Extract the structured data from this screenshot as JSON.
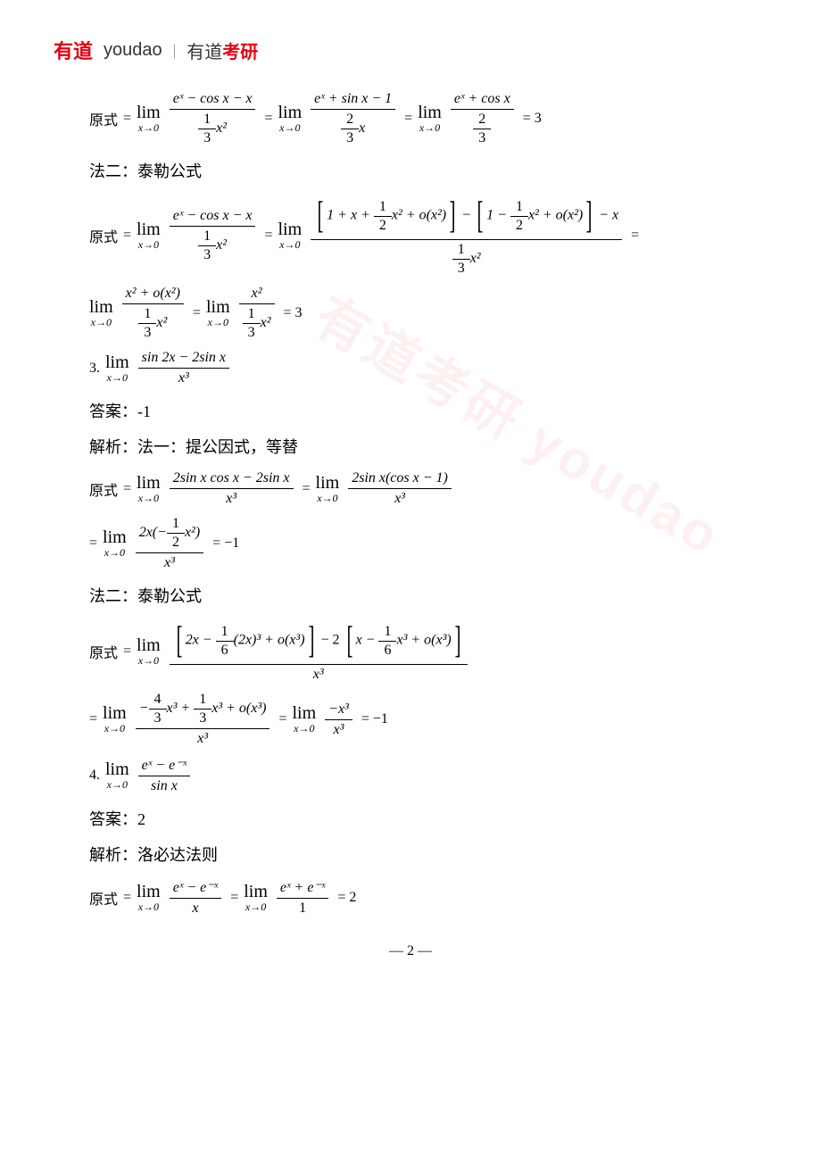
{
  "header": {
    "logo_cn": "有道",
    "logo_en": "youdao",
    "divider": "|",
    "brand_prefix": "有道",
    "brand_highlight": "考研"
  },
  "watermark": "有道考研 youdao",
  "sections": {
    "eq1_label": "原式",
    "eq1_step1_num": "eˣ − cos x − x",
    "eq1_step1_den_frac_num": "1",
    "eq1_step1_den_frac_den": "3",
    "eq1_step1_den_rest": "x²",
    "eq1_step2_num": "eˣ + sin x − 1",
    "eq1_step2_den_frac_num": "2",
    "eq1_step2_den_frac_den": "3",
    "eq1_step2_den_rest": "x",
    "eq1_step3_num": "eˣ + cos x",
    "eq1_step3_den_frac_num": "2",
    "eq1_step3_den_frac_den": "3",
    "eq1_result": "= 3",
    "method2_label": "法二：泰勒公式",
    "eq2_label": "原式",
    "eq2_step1_num": "eˣ − cos x − x",
    "eq2_taylor1": "1 + x +",
    "eq2_taylor1_frac_num": "1",
    "eq2_taylor1_frac_den": "2",
    "eq2_taylor1_rest": "x² + o(x²)",
    "eq2_taylor2": "1 −",
    "eq2_taylor2_rest": "x² + o(x²)",
    "eq2_taylor_minus_x": "− x",
    "eq2_cont_num": "x² + o(x²)",
    "eq2_cont2_num": "x²",
    "eq2_result": "= 3",
    "q3_label": "3.",
    "q3_num": "sin 2x − 2sin x",
    "q3_den": "x³",
    "q3_answer_label": "答案：",
    "q3_answer": "-1",
    "q3_analysis_label": "解析：法一：提公因式，等替",
    "q3_eq_label": "原式",
    "q3_step1_num": "2sin x cos x − 2sin x",
    "q3_step1_den": "x³",
    "q3_step2_num": "2sin x(cos x − 1)",
    "q3_step2_den": "x³",
    "q3_step3_num_a": "2x(−",
    "q3_step3_frac_num": "1",
    "q3_step3_frac_den": "2",
    "q3_step3_num_b": "x²)",
    "q3_step3_den": "x³",
    "q3_step3_result": "= −1",
    "q3_method2": "法二：泰勒公式",
    "q3_m2_label": "原式",
    "q3_m2_t1_a": "2x −",
    "q3_m2_t1_frac_num": "1",
    "q3_m2_t1_frac_den": "6",
    "q3_m2_t1_b": "(2x)³ + o(x³)",
    "q3_m2_t2_pre": "− 2",
    "q3_m2_t2_a": "x −",
    "q3_m2_t2_b": "x³ + o(x³)",
    "q3_m2_den": "x³",
    "q3_m2_s2_a": "−",
    "q3_m2_s2_f1_num": "4",
    "q3_m2_s2_f1_den": "3",
    "q3_m2_s2_b": "x³ +",
    "q3_m2_s2_f2_num": "1",
    "q3_m2_s2_f2_den": "3",
    "q3_m2_s2_c": "x³ + o(x³)",
    "q3_m2_s3_num": "−x³",
    "q3_m2_s3_den": "x³",
    "q3_m2_result": "= −1",
    "q4_label": "4.",
    "q4_num": "eˣ − e⁻ˣ",
    "q4_den": "sin x",
    "q4_answer_label": "答案：",
    "q4_answer": "2",
    "q4_analysis": "解析：洛必达法则",
    "q4_eq_label": "原式",
    "q4_step1_num": "eˣ − e⁻ˣ",
    "q4_step1_den": "x",
    "q4_step2_num": "eˣ + e⁻ˣ",
    "q4_step2_den": "1",
    "q4_result": "= 2",
    "lim_text": "lim",
    "lim_sub": "x→0",
    "page_number": "— 2 —"
  },
  "colors": {
    "brand_red": "#e60012",
    "text_black": "#000000",
    "text_gray": "#333333"
  }
}
